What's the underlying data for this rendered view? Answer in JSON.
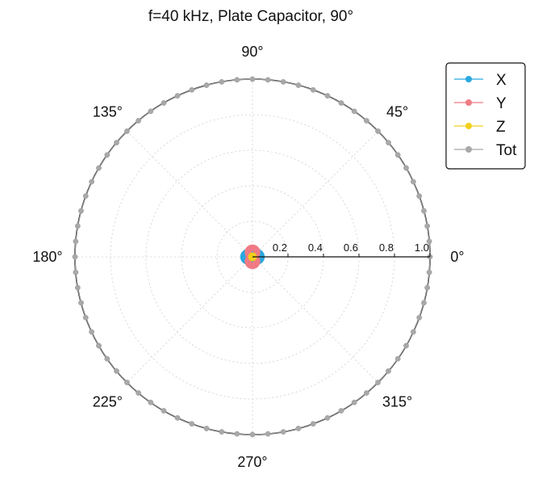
{
  "chart_data": {
    "type": "polar",
    "title": "f=40 kHz, Plate Capacitor, 90°",
    "angle_labels": [
      "0°",
      "45°",
      "90°",
      "135°",
      "180°",
      "225°",
      "270°",
      "315°"
    ],
    "radial_ticks": [
      0.2,
      0.4,
      0.6,
      0.8,
      1.0
    ],
    "radial_tick_labels": [
      "0.2",
      "0.4",
      "0.6",
      "0.8",
      "1.0"
    ],
    "rlim": [
      0,
      1.0
    ],
    "grid": true,
    "legend_position": "top-right",
    "angle_step_deg": 5,
    "series": [
      {
        "name": "X",
        "color": "#29a8e0",
        "marker": "circle",
        "description_pattern": "dipole along 0°-180°",
        "values": [
          0.05,
          0.0498,
          0.0492,
          0.0483,
          0.047,
          0.0453,
          0.0433,
          0.041,
          0.0383,
          0.0354,
          0.0321,
          0.0287,
          0.025,
          0.0211,
          0.0171,
          0.0129,
          0.0087,
          0.0044,
          0,
          0.0044,
          0.0087,
          0.0129,
          0.0171,
          0.0211,
          0.025,
          0.0287,
          0.0321,
          0.0354,
          0.0383,
          0.041,
          0.0433,
          0.0453,
          0.047,
          0.0483,
          0.0492,
          0.0498,
          0.05,
          0.0498,
          0.0492,
          0.0483,
          0.047,
          0.0453,
          0.0433,
          0.041,
          0.0383,
          0.0354,
          0.0321,
          0.0287,
          0.025,
          0.0211,
          0.0171,
          0.0129,
          0.0087,
          0.0044,
          0,
          0.0044,
          0.0087,
          0.0129,
          0.0171,
          0.0211,
          0.025,
          0.0287,
          0.0321,
          0.0354,
          0.0383,
          0.041,
          0.0433,
          0.0453,
          0.047,
          0.0483,
          0.0492,
          0.0498
        ]
      },
      {
        "name": "Y",
        "color": "#f07b84",
        "marker": "circle",
        "values": [
          0,
          0.0044,
          0.0087,
          0.0129,
          0.0171,
          0.0211,
          0.025,
          0.0287,
          0.0321,
          0.0354,
          0.0383,
          0.041,
          0.0433,
          0.0453,
          0.047,
          0.0483,
          0.0492,
          0.0498,
          0.05,
          0.0498,
          0.0492,
          0.0483,
          0.047,
          0.0453,
          0.0433,
          0.041,
          0.0383,
          0.0354,
          0.0321,
          0.0287,
          0.025,
          0.0211,
          0.0171,
          0.0129,
          0.0087,
          0.0044,
          0,
          0.0044,
          0.0087,
          0.0129,
          0.0171,
          0.0211,
          0.025,
          0.0287,
          0.0321,
          0.0354,
          0.0383,
          0.041,
          0.0433,
          0.0453,
          0.047,
          0.0483,
          0.0492,
          0.0498,
          0.05,
          0.0498,
          0.0492,
          0.0483,
          0.047,
          0.0453,
          0.0433,
          0.041,
          0.0383,
          0.0354,
          0.0321,
          0.0287,
          0.025,
          0.0211,
          0.0171,
          0.0129,
          0.0087,
          0.0044
        ]
      },
      {
        "name": "Z",
        "color": "#f2cf1c",
        "marker": "circle",
        "values": [
          0.005,
          0.005,
          0.005,
          0.005,
          0.005,
          0.005,
          0.005,
          0.005,
          0.005,
          0.005,
          0.005,
          0.005,
          0.005,
          0.005,
          0.005,
          0.005,
          0.005,
          0.005,
          0.005,
          0.005,
          0.005,
          0.005,
          0.005,
          0.005,
          0.005,
          0.005,
          0.005,
          0.005,
          0.005,
          0.005,
          0.005,
          0.005,
          0.005,
          0.005,
          0.005,
          0.005,
          0.005,
          0.005,
          0.005,
          0.005,
          0.005,
          0.005,
          0.005,
          0.005,
          0.005,
          0.005,
          0.005,
          0.005,
          0.005,
          0.005,
          0.005,
          0.005,
          0.005,
          0.005,
          0.005,
          0.005,
          0.005,
          0.005,
          0.005,
          0.005,
          0.005,
          0.005,
          0.005,
          0.005,
          0.005,
          0.005,
          0.005,
          0.005,
          0.005,
          0.005,
          0.005,
          0.005
        ]
      },
      {
        "name": "Tot",
        "color": "#a8a8a8",
        "marker": "circle",
        "values": [
          1.0,
          1.0,
          1.0,
          1.0,
          1.0,
          1.0,
          1.0,
          1.0,
          1.0,
          1.0,
          1.0,
          1.0,
          1.0,
          1.0,
          1.0,
          1.0,
          1.0,
          1.0,
          1.0,
          1.0,
          1.0,
          1.0,
          1.0,
          1.0,
          1.0,
          1.0,
          1.0,
          1.0,
          1.0,
          1.0,
          1.0,
          1.0,
          1.0,
          1.0,
          1.0,
          1.0,
          1.0,
          1.0,
          1.0,
          1.0,
          1.0,
          1.0,
          1.0,
          1.0,
          1.0,
          1.0,
          1.0,
          1.0,
          1.0,
          1.0,
          1.0,
          1.0,
          1.0,
          1.0,
          1.0,
          1.0,
          1.0,
          1.0,
          1.0,
          1.0,
          1.0,
          1.0,
          1.0,
          1.0,
          1.0,
          1.0,
          1.0,
          1.0,
          1.0,
          1.0,
          1.0,
          1.0
        ]
      }
    ]
  }
}
